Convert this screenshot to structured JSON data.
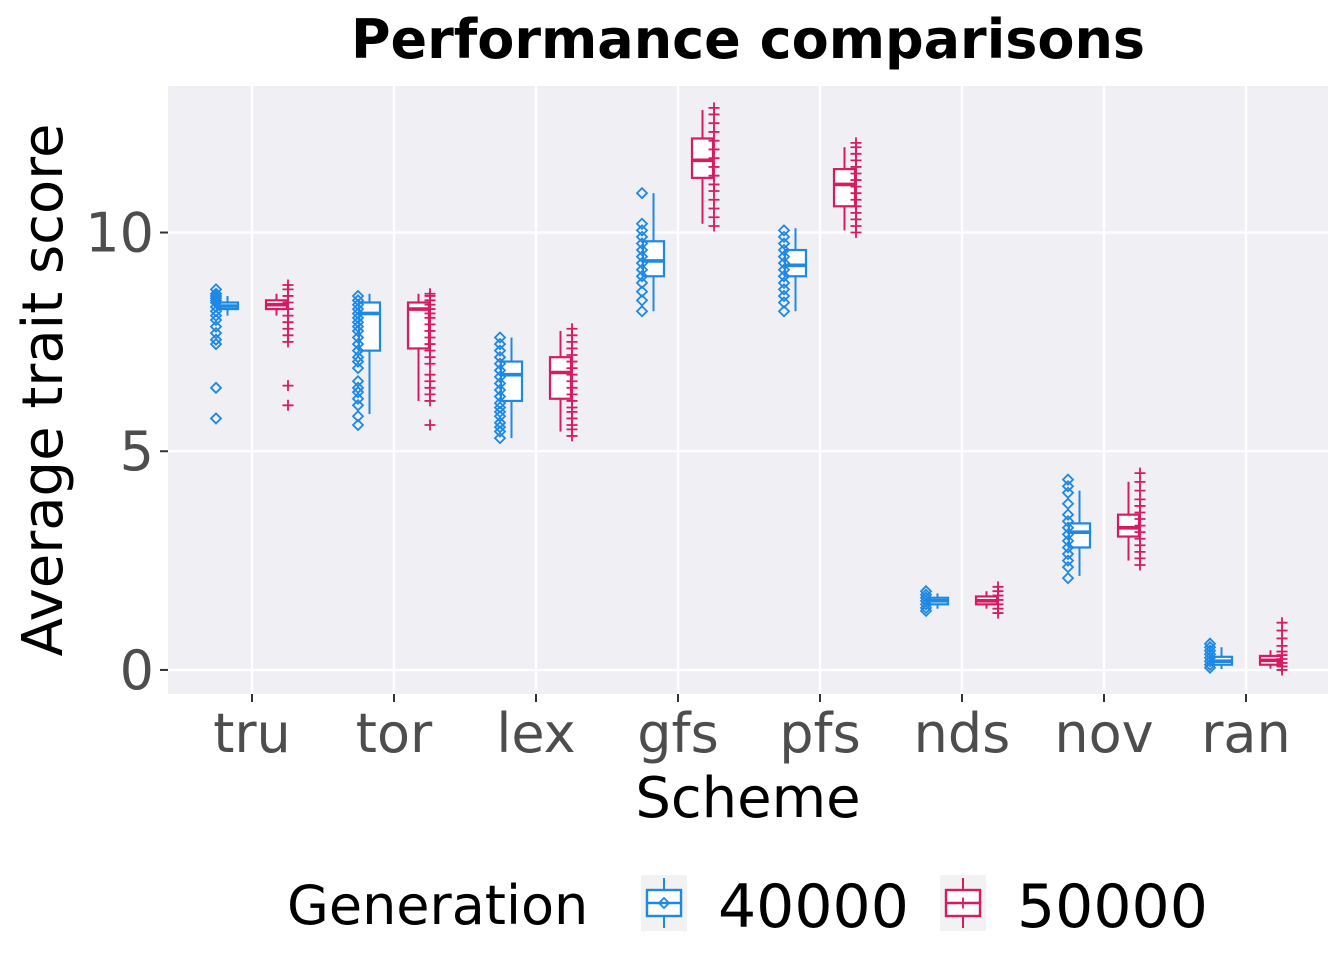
{
  "chart_data": {
    "type": "box",
    "title": "Performance comparisons",
    "xlabel": "Scheme",
    "ylabel": "Average trait score",
    "categories": [
      "tru",
      "tor",
      "lex",
      "gfs",
      "pfs",
      "nds",
      "nov",
      "ran"
    ],
    "y_ticks": [
      0,
      5,
      10
    ],
    "ylim": [
      -0.55,
      13.35
    ],
    "grid": true,
    "legend": {
      "title": "Generation",
      "position": "bottom"
    },
    "series": [
      {
        "name": "40000",
        "color": "#1e88e5",
        "marker": "diamond",
        "boxes": [
          {
            "category": "tru",
            "q1": 8.25,
            "median": 8.32,
            "q3": 8.4,
            "whisker_low": 8.1,
            "whisker_high": 8.55,
            "outliers": [
              5.75,
              6.45,
              7.45,
              7.55,
              7.7,
              7.85,
              8.0,
              8.1,
              8.2,
              8.3,
              8.4,
              8.45,
              8.5,
              8.55,
              8.6,
              8.7
            ]
          },
          {
            "category": "tor",
            "q1": 7.3,
            "median": 8.15,
            "q3": 8.4,
            "whisker_low": 5.85,
            "whisker_high": 8.6,
            "outliers": [
              5.6,
              5.8,
              6.05,
              6.2,
              6.35,
              6.45,
              6.6,
              6.9,
              7.05,
              7.15,
              7.3,
              7.45,
              7.6,
              7.75,
              7.85,
              7.95,
              8.05,
              8.15,
              8.25,
              8.35,
              8.45,
              8.55
            ]
          },
          {
            "category": "lex",
            "q1": 6.15,
            "median": 6.75,
            "q3": 7.05,
            "whisker_low": 5.3,
            "whisker_high": 7.6,
            "outliers": [
              5.3,
              5.45,
              5.55,
              5.65,
              5.8,
              5.9,
              6.0,
              6.1,
              6.25,
              6.4,
              6.55,
              6.7,
              6.85,
              7.0,
              7.15,
              7.3,
              7.45,
              7.6
            ]
          },
          {
            "category": "gfs",
            "q1": 9.0,
            "median": 9.35,
            "q3": 9.8,
            "whisker_low": 8.2,
            "whisker_high": 10.9,
            "outliers": [
              8.2,
              8.45,
              8.65,
              8.85,
              9.0,
              9.15,
              9.3,
              9.45,
              9.6,
              9.75,
              9.9,
              10.05,
              10.2,
              10.9
            ]
          },
          {
            "category": "pfs",
            "q1": 9.0,
            "median": 9.25,
            "q3": 9.6,
            "whisker_low": 8.2,
            "whisker_high": 10.1,
            "outliers": [
              8.2,
              8.4,
              8.55,
              8.7,
              8.85,
              9.0,
              9.15,
              9.3,
              9.45,
              9.6,
              9.75,
              9.9,
              10.05
            ]
          },
          {
            "category": "nds",
            "q1": 1.5,
            "median": 1.58,
            "q3": 1.65,
            "whisker_low": 1.4,
            "whisker_high": 1.75,
            "outliers": [
              1.35,
              1.42,
              1.5,
              1.58,
              1.65,
              1.72,
              1.8
            ]
          },
          {
            "category": "nov",
            "q1": 2.8,
            "median": 3.15,
            "q3": 3.35,
            "whisker_low": 2.15,
            "whisker_high": 4.1,
            "outliers": [
              2.1,
              2.35,
              2.5,
              2.65,
              2.8,
              2.95,
              3.1,
              3.25,
              3.4,
              3.55,
              3.8,
              4.05,
              4.2,
              4.35
            ]
          },
          {
            "category": "ran",
            "q1": 0.12,
            "median": 0.2,
            "q3": 0.3,
            "whisker_low": 0.02,
            "whisker_high": 0.52,
            "outliers": [
              0.05,
              0.12,
              0.2,
              0.28,
              0.36,
              0.44,
              0.52,
              0.6
            ]
          }
        ]
      },
      {
        "name": "50000",
        "color": "#d81b60",
        "marker": "plus",
        "boxes": [
          {
            "category": "tru",
            "q1": 8.25,
            "median": 8.35,
            "q3": 8.45,
            "whisker_low": 8.1,
            "whisker_high": 8.6,
            "outliers": [
              6.05,
              6.5,
              7.5,
              7.65,
              7.8,
              7.95,
              8.1,
              8.25,
              8.4,
              8.55,
              8.7,
              8.8
            ]
          },
          {
            "category": "tor",
            "q1": 7.35,
            "median": 8.25,
            "q3": 8.4,
            "whisker_low": 6.15,
            "whisker_high": 8.6,
            "outliers": [
              5.6,
              6.15,
              6.3,
              6.45,
              6.6,
              6.75,
              7.0,
              7.15,
              7.3,
              7.45,
              7.6,
              7.75,
              7.9,
              8.05,
              8.15,
              8.25,
              8.35,
              8.45,
              8.55,
              8.6
            ]
          },
          {
            "category": "lex",
            "q1": 6.2,
            "median": 6.8,
            "q3": 7.15,
            "whisker_low": 5.45,
            "whisker_high": 7.75,
            "outliers": [
              5.35,
              5.5,
              5.6,
              5.75,
              5.9,
              6.0,
              6.15,
              6.3,
              6.45,
              6.6,
              6.75,
              6.9,
              7.05,
              7.2,
              7.35,
              7.5,
              7.65,
              7.8
            ]
          },
          {
            "category": "gfs",
            "q1": 11.25,
            "median": 11.65,
            "q3": 12.15,
            "whisker_low": 10.2,
            "whisker_high": 12.8,
            "outliers": [
              10.15,
              10.35,
              10.55,
              10.75,
              10.95,
              11.1,
              11.3,
              11.5,
              11.7,
              11.9,
              12.1,
              12.3,
              12.5,
              12.7,
              12.85
            ]
          },
          {
            "category": "pfs",
            "q1": 10.6,
            "median": 11.1,
            "q3": 11.45,
            "whisker_low": 10.05,
            "whisker_high": 11.95,
            "outliers": [
              10.0,
              10.15,
              10.3,
              10.45,
              10.6,
              10.75,
              10.9,
              11.05,
              11.2,
              11.35,
              11.5,
              11.65,
              11.8,
              11.95,
              12.05
            ]
          },
          {
            "category": "nds",
            "q1": 1.5,
            "median": 1.58,
            "q3": 1.68,
            "whisker_low": 1.4,
            "whisker_high": 1.8,
            "outliers": [
              1.3,
              1.4,
              1.5,
              1.6,
              1.7,
              1.8,
              1.9
            ]
          },
          {
            "category": "nov",
            "q1": 3.05,
            "median": 3.25,
            "q3": 3.55,
            "whisker_low": 2.5,
            "whisker_high": 4.3,
            "outliers": [
              2.4,
              2.55,
              2.7,
              2.85,
              3.0,
              3.15,
              3.3,
              3.45,
              3.6,
              3.75,
              3.9,
              4.1,
              4.3,
              4.5
            ]
          },
          {
            "category": "ran",
            "q1": 0.12,
            "median": 0.22,
            "q3": 0.32,
            "whisker_low": 0.03,
            "whisker_high": 0.45,
            "outliers": [
              0.0,
              0.08,
              0.16,
              0.25,
              0.34,
              0.42,
              0.55,
              0.72,
              0.9,
              1.08
            ]
          }
        ]
      }
    ]
  }
}
